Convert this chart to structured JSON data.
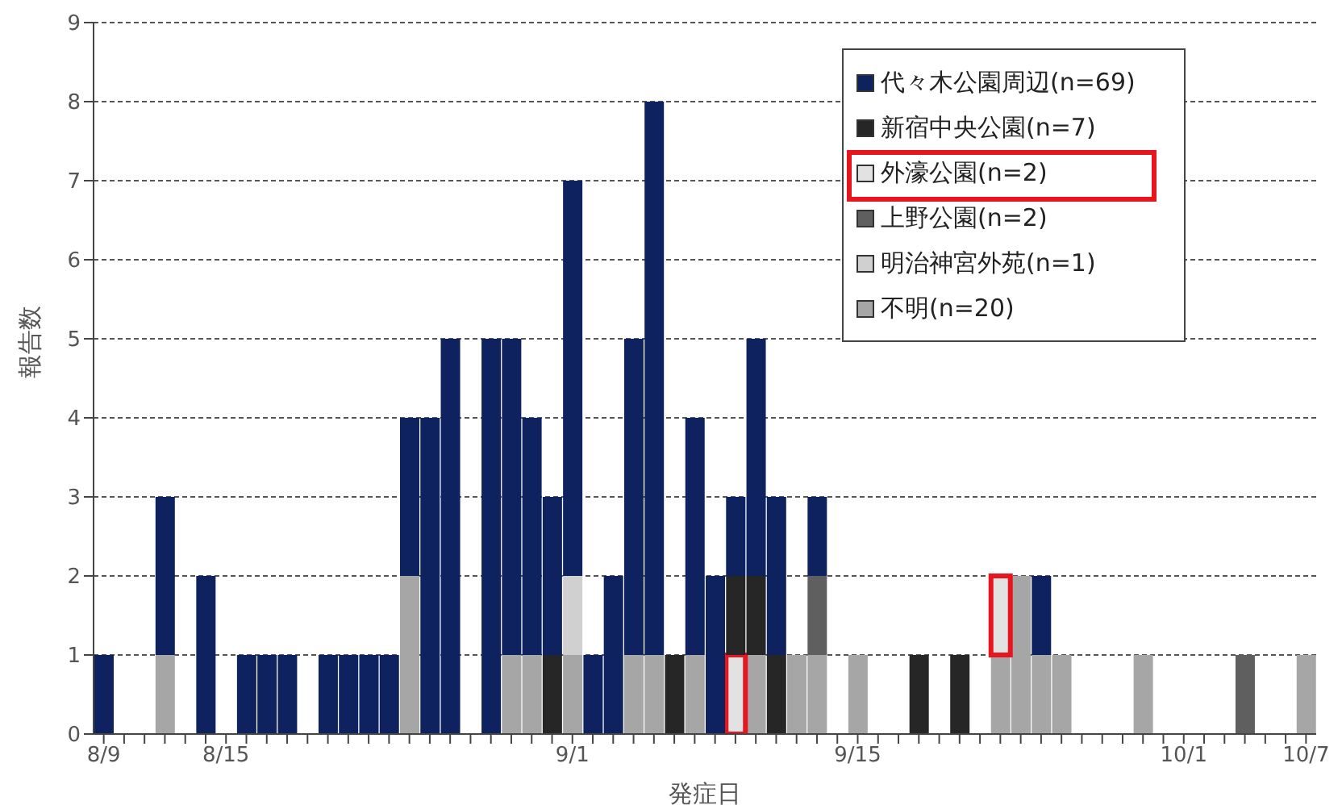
{
  "chart_data": {
    "type": "bar",
    "stacked": true,
    "xlabel": "発症日",
    "ylabel": "報告数",
    "categories": [
      "8/9",
      null,
      null,
      null,
      null,
      null,
      "8/15",
      null,
      null,
      null,
      null,
      null,
      null,
      null,
      null,
      null,
      null,
      null,
      null,
      null,
      null,
      null,
      null,
      "9/1",
      null,
      null,
      null,
      null,
      null,
      null,
      null,
      null,
      null,
      null,
      null,
      null,
      null,
      "9/15",
      null,
      null,
      null,
      null,
      null,
      null,
      null,
      null,
      null,
      null,
      null,
      null,
      null,
      null,
      null,
      "10/1",
      null,
      null,
      null,
      null,
      null,
      "10/7"
    ],
    "series": [
      {
        "name": "不明(n=20)",
        "color": "#a6a6a6",
        "values": [
          0,
          0,
          0,
          1,
          0,
          0,
          0,
          0,
          0,
          0,
          0,
          0,
          0,
          0,
          0,
          2,
          0,
          0,
          0,
          0,
          1,
          1,
          0,
          1,
          0,
          0,
          1,
          1,
          0,
          1,
          0,
          0,
          1,
          0,
          1,
          1,
          0,
          1,
          0,
          0,
          0,
          0,
          0,
          0,
          1,
          2,
          1,
          1,
          0,
          0,
          0,
          1,
          0,
          0,
          0,
          0,
          0,
          0,
          0,
          1
        ]
      },
      {
        "name": "明治神宮外苑(n=1)",
        "color": "#d0d0d0",
        "values": [
          0,
          0,
          0,
          0,
          0,
          0,
          0,
          0,
          0,
          0,
          0,
          0,
          0,
          0,
          0,
          0,
          0,
          0,
          0,
          0,
          0,
          0,
          0,
          1,
          0,
          0,
          0,
          0,
          0,
          0,
          0,
          0,
          0,
          0,
          0,
          0,
          0,
          0,
          0,
          0,
          0,
          0,
          0,
          0,
          0,
          0,
          0,
          0,
          0,
          0,
          0,
          0,
          0,
          0,
          0,
          0,
          0,
          0,
          0,
          0
        ]
      },
      {
        "name": "上野公園(n=2)",
        "color": "#5f5f5f",
        "values": [
          0,
          0,
          0,
          0,
          0,
          0,
          0,
          0,
          0,
          0,
          0,
          0,
          0,
          0,
          0,
          0,
          0,
          0,
          0,
          0,
          0,
          0,
          0,
          0,
          0,
          0,
          0,
          0,
          0,
          0,
          0,
          0,
          0,
          0,
          0,
          1,
          0,
          0,
          0,
          0,
          0,
          0,
          0,
          0,
          0,
          0,
          0,
          0,
          0,
          0,
          0,
          0,
          0,
          0,
          0,
          0,
          1,
          0,
          0,
          0
        ]
      },
      {
        "name": "外濠公園(n=2)",
        "color": "#e2e2e2",
        "values": [
          0,
          0,
          0,
          0,
          0,
          0,
          0,
          0,
          0,
          0,
          0,
          0,
          0,
          0,
          0,
          0,
          0,
          0,
          0,
          0,
          0,
          0,
          0,
          0,
          0,
          0,
          0,
          0,
          0,
          0,
          0,
          1,
          0,
          0,
          0,
          0,
          0,
          0,
          0,
          0,
          0,
          0,
          0,
          0,
          1,
          0,
          0,
          0,
          0,
          0,
          0,
          0,
          0,
          0,
          0,
          0,
          0,
          0,
          0,
          0
        ]
      },
      {
        "name": "新宿中央公園(n=7)",
        "color": "#262626",
        "values": [
          0,
          0,
          0,
          0,
          0,
          0,
          0,
          0,
          0,
          0,
          0,
          0,
          0,
          0,
          0,
          0,
          0,
          0,
          0,
          0,
          0,
          0,
          1,
          0,
          0,
          0,
          0,
          0,
          1,
          0,
          0,
          1,
          1,
          1,
          0,
          0,
          0,
          0,
          0,
          0,
          1,
          0,
          1,
          0,
          0,
          0,
          0,
          0,
          0,
          0,
          0,
          0,
          0,
          0,
          0,
          0,
          0,
          0,
          0,
          0
        ]
      },
      {
        "name": "代々木公園周辺(n=69)",
        "color": "#0f2260",
        "values": [
          1,
          0,
          0,
          2,
          0,
          2,
          0,
          1,
          1,
          1,
          0,
          1,
          1,
          1,
          1,
          2,
          4,
          5,
          0,
          5,
          4,
          3,
          2,
          5,
          1,
          2,
          4,
          7,
          0,
          3,
          2,
          1,
          3,
          2,
          0,
          1,
          0,
          0,
          0,
          0,
          0,
          0,
          0,
          0,
          0,
          0,
          1,
          0,
          0,
          0,
          0,
          0,
          0,
          0,
          0,
          0,
          0,
          0,
          0,
          0
        ]
      }
    ],
    "ylim": [
      0,
      9
    ],
    "yticks": [
      0,
      1,
      2,
      3,
      4,
      5,
      6,
      7,
      8,
      9
    ],
    "grid": "y",
    "legend": "top right"
  }
}
